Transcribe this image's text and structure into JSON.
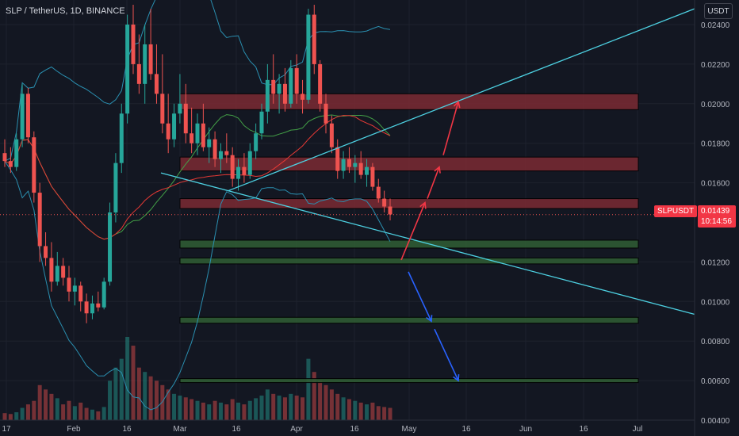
{
  "header": {
    "title": "SLP / TetherUS, 1D, BINANCE",
    "currency_button": "USDT"
  },
  "last_price": {
    "symbol": "SLPUSDT",
    "value": "0.01439",
    "countdown": "10:14:56",
    "color": "#f23645"
  },
  "chart_data": {
    "type": "candlestick",
    "pair": "SLP / TetherUS",
    "interval": "1D",
    "exchange": "BINANCE",
    "y_ticks": [
      "0.02400",
      "0.02200",
      "0.02000",
      "0.01800",
      "0.01600",
      "0.01200",
      "0.01000",
      "0.00800",
      "0.00600",
      "0.00400"
    ],
    "x_ticks": [
      "17",
      "Feb",
      "16",
      "Mar",
      "16",
      "Apr",
      "16",
      "May",
      "16",
      "Jun",
      "16",
      "Jul"
    ],
    "ylim": [
      0.0039,
      0.0248
    ],
    "last_value": 0.01439,
    "candles": [
      [
        0.0175,
        0.0182,
        0.0168,
        0.0171
      ],
      [
        0.0171,
        0.0178,
        0.0165,
        0.0168
      ],
      [
        0.0168,
        0.0185,
        0.0166,
        0.0182
      ],
      [
        0.0182,
        0.021,
        0.0178,
        0.0205
      ],
      [
        0.0205,
        0.0208,
        0.018,
        0.0183
      ],
      [
        0.0183,
        0.0186,
        0.015,
        0.0155
      ],
      [
        0.0155,
        0.016,
        0.012,
        0.0128
      ],
      [
        0.0128,
        0.0135,
        0.0118,
        0.0122
      ],
      [
        0.0122,
        0.013,
        0.0105,
        0.011
      ],
      [
        0.011,
        0.0125,
        0.0108,
        0.0118
      ],
      [
        0.0118,
        0.0122,
        0.0108,
        0.0112
      ],
      [
        0.0112,
        0.0118,
        0.01,
        0.0105
      ],
      [
        0.0105,
        0.0112,
        0.0098,
        0.0108
      ],
      [
        0.0108,
        0.011,
        0.0095,
        0.01
      ],
      [
        0.01,
        0.0104,
        0.0089,
        0.0094
      ],
      [
        0.0094,
        0.0103,
        0.0091,
        0.0099
      ],
      [
        0.0099,
        0.0105,
        0.0095,
        0.0097
      ],
      [
        0.0097,
        0.0112,
        0.0096,
        0.011
      ],
      [
        0.011,
        0.015,
        0.0108,
        0.0145
      ],
      [
        0.0145,
        0.0175,
        0.014,
        0.017
      ],
      [
        0.017,
        0.02,
        0.0165,
        0.0195
      ],
      [
        0.0195,
        0.0245,
        0.019,
        0.024
      ],
      [
        0.024,
        0.025,
        0.0215,
        0.022
      ],
      [
        0.022,
        0.0235,
        0.0205,
        0.021
      ],
      [
        0.021,
        0.024,
        0.02,
        0.023
      ],
      [
        0.023,
        0.0248,
        0.0212,
        0.0215
      ],
      [
        0.0215,
        0.023,
        0.02,
        0.0205
      ],
      [
        0.0205,
        0.0225,
        0.0185,
        0.019
      ],
      [
        0.019,
        0.0205,
        0.0175,
        0.0182
      ],
      [
        0.0182,
        0.02,
        0.0178,
        0.0195
      ],
      [
        0.0195,
        0.0215,
        0.019,
        0.02
      ],
      [
        0.02,
        0.021,
        0.018,
        0.0185
      ],
      [
        0.0185,
        0.0198,
        0.0175,
        0.018
      ],
      [
        0.018,
        0.0195,
        0.0174,
        0.019
      ],
      [
        0.019,
        0.02,
        0.0176,
        0.0178
      ],
      [
        0.0178,
        0.0188,
        0.017,
        0.0182
      ],
      [
        0.0182,
        0.0186,
        0.0168,
        0.0172
      ],
      [
        0.0172,
        0.018,
        0.0165,
        0.0176
      ],
      [
        0.0176,
        0.0185,
        0.017,
        0.0174
      ],
      [
        0.0174,
        0.0178,
        0.0158,
        0.0162
      ],
      [
        0.0162,
        0.0172,
        0.0156,
        0.0168
      ],
      [
        0.0168,
        0.0175,
        0.016,
        0.0164
      ],
      [
        0.0164,
        0.018,
        0.0162,
        0.0176
      ],
      [
        0.0176,
        0.019,
        0.0172,
        0.0185
      ],
      [
        0.0185,
        0.02,
        0.0182,
        0.0196
      ],
      [
        0.0196,
        0.022,
        0.019,
        0.0212
      ],
      [
        0.0212,
        0.0225,
        0.02,
        0.0205
      ],
      [
        0.0205,
        0.0215,
        0.0195,
        0.021
      ],
      [
        0.021,
        0.0218,
        0.0196,
        0.02
      ],
      [
        0.02,
        0.0222,
        0.0198,
        0.0218
      ],
      [
        0.0218,
        0.0225,
        0.02,
        0.0205
      ],
      [
        0.0205,
        0.0212,
        0.0195,
        0.0202
      ],
      [
        0.0202,
        0.0248,
        0.02,
        0.0245
      ],
      [
        0.0245,
        0.025,
        0.0215,
        0.022
      ],
      [
        0.022,
        0.0222,
        0.0196,
        0.02
      ],
      [
        0.02,
        0.0205,
        0.0185,
        0.019
      ],
      [
        0.019,
        0.0194,
        0.0175,
        0.0178
      ],
      [
        0.0178,
        0.0182,
        0.0162,
        0.0166
      ],
      [
        0.0166,
        0.0176,
        0.0162,
        0.0172
      ],
      [
        0.0172,
        0.0178,
        0.0165,
        0.0168
      ],
      [
        0.0168,
        0.0174,
        0.016,
        0.017
      ],
      [
        0.017,
        0.0176,
        0.0162,
        0.0164
      ],
      [
        0.0164,
        0.0172,
        0.0158,
        0.0168
      ],
      [
        0.0168,
        0.017,
        0.0156,
        0.0158
      ],
      [
        0.0158,
        0.0162,
        0.015,
        0.0152
      ],
      [
        0.0152,
        0.0156,
        0.0145,
        0.0148
      ],
      [
        0.0148,
        0.0152,
        0.0141,
        0.0144
      ]
    ],
    "volume": [
      8,
      7,
      9,
      14,
      18,
      22,
      40,
      35,
      30,
      25,
      18,
      22,
      16,
      20,
      14,
      12,
      10,
      15,
      45,
      60,
      70,
      95,
      85,
      60,
      55,
      50,
      45,
      40,
      35,
      30,
      28,
      26,
      24,
      22,
      20,
      18,
      22,
      20,
      18,
      24,
      20,
      18,
      22,
      25,
      28,
      35,
      30,
      28,
      26,
      30,
      28,
      26,
      70,
      55,
      45,
      40,
      35,
      30,
      26,
      24,
      22,
      20,
      18,
      20,
      16,
      15,
      14
    ],
    "zones": {
      "resistance": [
        [
          0.0197,
          0.0205
        ],
        [
          0.0166,
          0.0173
        ],
        [
          0.0147,
          0.0152
        ]
      ],
      "support": [
        [
          0.0127,
          0.0131
        ],
        [
          0.0119,
          0.0122
        ],
        [
          0.0089,
          0.0092
        ],
        [
          0.0059,
          0.0061
        ]
      ]
    },
    "trend_lines": [
      {
        "from": [
          "Mar 13",
          0.0156
        ],
        "to": [
          "beyond Jul",
          0.0248
        ]
      },
      {
        "from": [
          "Feb 27",
          0.0165
        ],
        "to": [
          "beyond Jul",
          0.00935
        ]
      }
    ],
    "arrows": {
      "up": [
        [
          [
            0.0121
          ],
          [
            0.015
          ]
        ],
        [
          [
            0.0152
          ],
          [
            0.0168
          ]
        ],
        [
          [
            0.0174
          ],
          [
            0.0201
          ]
        ]
      ],
      "down": [
        [
          [
            0.0115
          ],
          [
            0.009
          ]
        ],
        [
          [
            0.0086
          ],
          [
            0.006
          ]
        ]
      ]
    },
    "colors": {
      "background": "#131722",
      "up": "#26a69a",
      "down": "#ef5350",
      "resistance_zone": "#7b2a33",
      "support_zone": "#2e5a33",
      "trend_line": "#4dd0e1",
      "arrow_up": "#f23645",
      "arrow_down": "#2962ff",
      "bollinger": "#2a8fb0",
      "ma_fast": "#43a047",
      "ma_slow": "#e53935"
    }
  }
}
